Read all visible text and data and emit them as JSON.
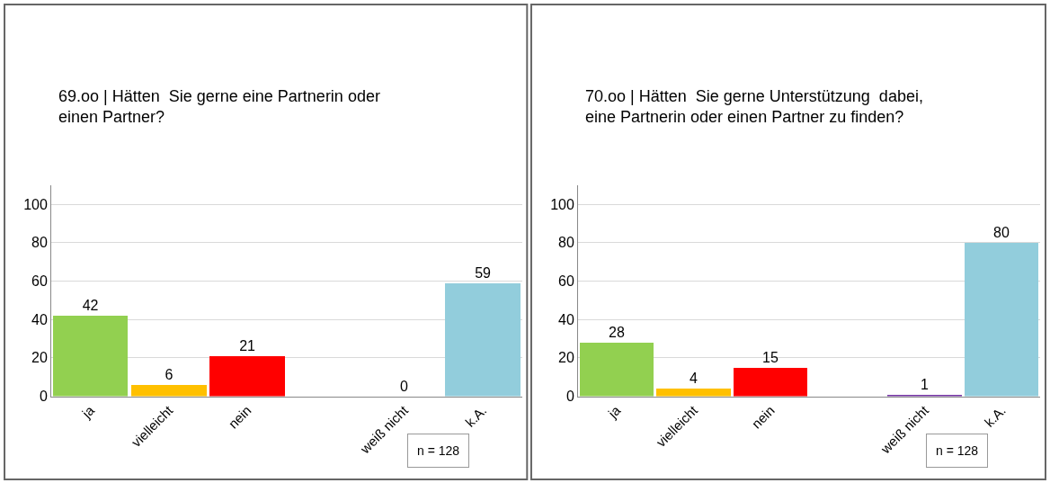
{
  "chart_data": [
    {
      "type": "bar",
      "title": "69.oo | Hätten  Sie gerne eine Partnerin oder\neinen Partner?",
      "categories": [
        "ja",
        "vielleicht",
        "nein",
        null,
        "weiß nicht",
        "k.A."
      ],
      "values": [
        42,
        6,
        21,
        null,
        0,
        59
      ],
      "colors": [
        "#92d050",
        "#ffc000",
        "#ff0000",
        "#ffffff",
        "#7030a0",
        "#92cddc"
      ],
      "ylim": [
        0,
        110
      ],
      "yticks": [
        0,
        20,
        40,
        60,
        80,
        100
      ],
      "grid": "y",
      "data_labels": true,
      "annotations": [
        "n = 128"
      ]
    },
    {
      "type": "bar",
      "title": "70.oo | Hätten  Sie gerne Unterstützung  dabei,\neine Partnerin oder einen Partner zu finden?",
      "categories": [
        "ja",
        "vielleicht",
        "nein",
        null,
        "weiß nicht",
        "k.A."
      ],
      "values": [
        28,
        4,
        15,
        null,
        1,
        80
      ],
      "colors": [
        "#92d050",
        "#ffc000",
        "#ff0000",
        "#ffffff",
        "#7030a0",
        "#92cddc"
      ],
      "ylim": [
        0,
        110
      ],
      "yticks": [
        0,
        20,
        40,
        60,
        80,
        100
      ],
      "grid": "y",
      "data_labels": true,
      "annotations": [
        "n = 128"
      ]
    }
  ]
}
